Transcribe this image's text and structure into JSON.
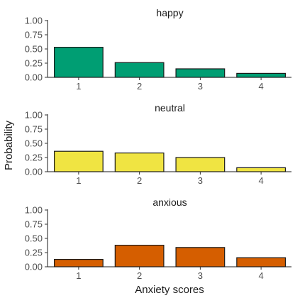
{
  "chart_data": {
    "type": "bar",
    "layout": "faceted",
    "xlabel": "Anxiety scores",
    "ylabel": "Probability",
    "categories": [
      "1",
      "2",
      "3",
      "4"
    ],
    "ylim": [
      0,
      1
    ],
    "yticks": [
      "0.00",
      "0.25",
      "0.50",
      "0.75",
      "1.00"
    ],
    "grid": false,
    "legend": "none",
    "panels": [
      {
        "title": "happy",
        "color": "#009E73",
        "values": [
          0.53,
          0.26,
          0.15,
          0.07
        ]
      },
      {
        "title": "neutral",
        "color": "#F0E442",
        "values": [
          0.36,
          0.33,
          0.25,
          0.07
        ]
      },
      {
        "title": "anxious",
        "color": "#D55E00",
        "values": [
          0.13,
          0.38,
          0.34,
          0.16
        ]
      }
    ]
  }
}
